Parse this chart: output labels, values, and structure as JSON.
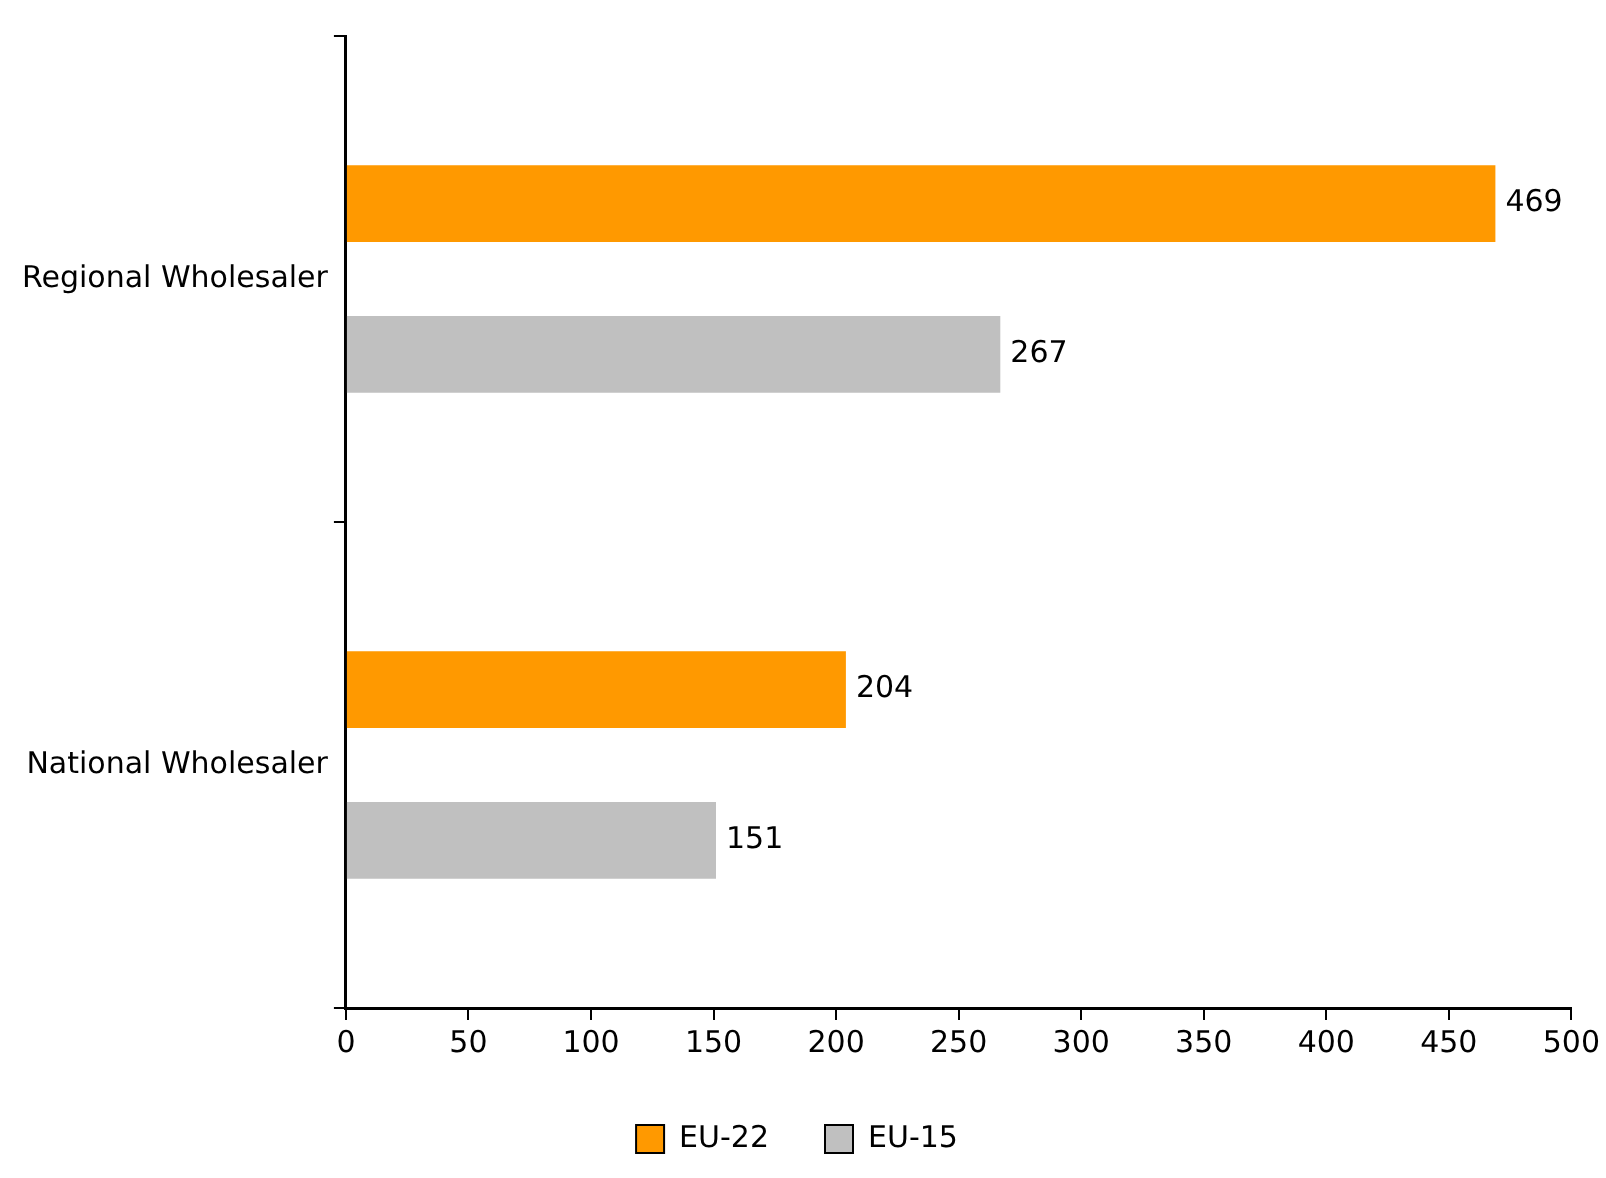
{
  "chart_data": {
    "type": "bar",
    "orientation": "horizontal",
    "categories": [
      "Regional Wholesaler",
      "National Wholesaler"
    ],
    "series": [
      {
        "name": "EU-22",
        "color": "#ff9900",
        "values": [
          469,
          204
        ]
      },
      {
        "name": "EU-15",
        "color": "#c0c0c0",
        "values": [
          267,
          151
        ]
      }
    ],
    "xlim": [
      0,
      500
    ],
    "xticks": [
      0,
      50,
      100,
      150,
      200,
      250,
      300,
      350,
      400,
      450,
      500
    ],
    "data_labels": true,
    "legend": "bottom",
    "grid": false
  }
}
